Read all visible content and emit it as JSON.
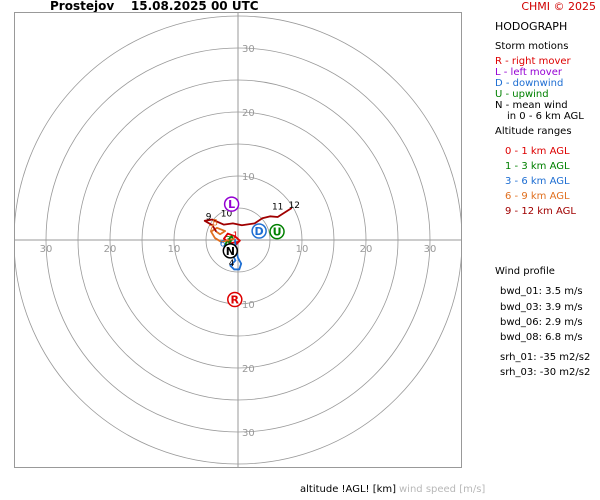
{
  "header": {
    "title": "Prostejov    15.08.2025 00 UTC",
    "copyright": "CHMI © 2025"
  },
  "panel": {
    "heading": "HODOGRAPH",
    "storm_heading": "Storm motions",
    "storm_items": [
      {
        "text": "R - right mover",
        "color": "#dd0000"
      },
      {
        "text": "L - left mover",
        "color": "#9400d3"
      },
      {
        "text": "D - downwind",
        "color": "#1e6ed2"
      },
      {
        "text": "U - upwind",
        "color": "#008000"
      },
      {
        "text": "N - mean wind",
        "color": "#000000"
      },
      {
        "text": "in 0 - 6 km AGL",
        "color": "#000000"
      }
    ],
    "alt_heading": "Altitude ranges",
    "alt_items": [
      {
        "text": "0 - 1 km AGL",
        "color": "#dd0000"
      },
      {
        "text": "1 - 3 km AGL",
        "color": "#008000"
      },
      {
        "text": "3 - 6 km AGL",
        "color": "#1e6ed2"
      },
      {
        "text": "6 - 9 km AGL",
        "color": "#e07020"
      },
      {
        "text": "9 - 12 km AGL",
        "color": "#a00000"
      }
    ],
    "wind_heading": "Wind profile",
    "wind_items": [
      "bwd_01: 3.5 m/s",
      "bwd_03: 3.9 m/s",
      "bwd_06: 2.9 m/s",
      "bwd_08: 6.8 m/s",
      "srh_01: -35 m2/s2",
      "srh_03: -30 m2/s2"
    ]
  },
  "footer": {
    "altitude_label": "altitude !AGL! [km]",
    "speed_label": "wind speed [m/s]"
  },
  "chart_data": {
    "type": "line",
    "xlim": [
      -35,
      35
    ],
    "ylim": [
      -35,
      35
    ],
    "rings": [
      5,
      10,
      15,
      20,
      25,
      30,
      35
    ],
    "x_ticks": [
      -30,
      -20,
      -10,
      10,
      20,
      30
    ],
    "y_ticks": [
      30,
      20,
      10,
      -10,
      -20,
      -30
    ],
    "tick_labels": [
      "30",
      "20",
      "10",
      "10",
      "20",
      "30"
    ],
    "series": [
      {
        "color": "#dd0000",
        "points": [
          [
            0,
            -0.3
          ],
          [
            -1.2,
            -0.5
          ],
          [
            -2.2,
            0.2
          ],
          [
            -1.6,
            1.0
          ],
          [
            -0.5,
            0.6
          ],
          [
            0.3,
            -0.1
          ],
          [
            -0.9,
            -1.3
          ],
          [
            -2.1,
            -1.1
          ]
        ]
      },
      {
        "color": "#008000",
        "points": [
          [
            -2.1,
            -1.1
          ],
          [
            -1.8,
            -0.3
          ],
          [
            -1.0,
            0.6
          ],
          [
            -0.8,
            0.2
          ],
          [
            -1.4,
            -0.5
          ]
        ]
      },
      {
        "color": "#1e6ed2",
        "points": [
          [
            -1.4,
            -0.5
          ],
          [
            -0.9,
            -2.2
          ],
          [
            -0.4,
            -3.2
          ],
          [
            -1.2,
            -4.0
          ],
          [
            -0.6,
            -4.6
          ],
          [
            0.2,
            -4.6
          ],
          [
            0.5,
            -3.7
          ],
          [
            0.0,
            -2.8
          ],
          [
            -0.3,
            -1.6
          ],
          [
            -0.5,
            0.2
          ]
        ]
      },
      {
        "color": "#e07020",
        "points": [
          [
            -0.5,
            0.2
          ],
          [
            -2.6,
            -0.3
          ],
          [
            -3.6,
            0.3
          ],
          [
            -4.2,
            1.3
          ],
          [
            -3.3,
            1.9
          ],
          [
            -2.0,
            1.4
          ],
          [
            -2.8,
            0.9
          ],
          [
            -3.4,
            1.3
          ]
        ]
      },
      {
        "color": "#a00000",
        "points": [
          [
            -3.4,
            1.3
          ],
          [
            -4.0,
            2.3
          ],
          [
            -5.2,
            3.0
          ],
          [
            -4.0,
            3.2
          ],
          [
            -2.2,
            2.4
          ],
          [
            -0.8,
            2.6
          ],
          [
            0.6,
            2.3
          ],
          [
            2.6,
            2.6
          ],
          [
            3.8,
            3.4
          ],
          [
            5.0,
            3.7
          ],
          [
            6.2,
            3.6
          ],
          [
            7.3,
            4.3
          ],
          [
            8.4,
            5.0
          ]
        ]
      }
    ],
    "altitude_labels": [
      {
        "text": "1",
        "x": -0.4,
        "y": 0.3,
        "color": "#dd0000"
      },
      {
        "text": "3",
        "x": -1.5,
        "y": -0.4,
        "color": "#008000"
      },
      {
        "text": "4",
        "x": -1.0,
        "y": -4.1,
        "color": "#000000"
      },
      {
        "text": "6",
        "x": -2.4,
        "y": -1.0,
        "color": "#1e6ed2"
      },
      {
        "text": "7",
        "x": -4.2,
        "y": 1.3,
        "color": "#e07020"
      },
      {
        "text": "8",
        "x": -3.6,
        "y": 2.3,
        "color": "#e07020"
      },
      {
        "text": "9",
        "x": -4.6,
        "y": 3.2,
        "color": "#000000"
      },
      {
        "text": "10",
        "x": -1.8,
        "y": 3.7,
        "color": "#000000"
      },
      {
        "text": "11",
        "x": 6.2,
        "y": 4.8,
        "color": "#000000"
      },
      {
        "text": "12",
        "x": 8.8,
        "y": 5.0,
        "color": "#000000"
      }
    ],
    "storm_markers": [
      {
        "letter": "L",
        "x": -1.0,
        "y": 5.6,
        "color": "#9400d3"
      },
      {
        "letter": "D",
        "x": 3.3,
        "y": 1.4,
        "color": "#1e6ed2"
      },
      {
        "letter": "U",
        "x": 6.1,
        "y": 1.3,
        "color": "#008000"
      },
      {
        "letter": "N",
        "x": -1.2,
        "y": -1.7,
        "color": "#000000"
      },
      {
        "letter": "R",
        "x": -0.5,
        "y": -9.3,
        "color": "#dd0000"
      }
    ]
  }
}
